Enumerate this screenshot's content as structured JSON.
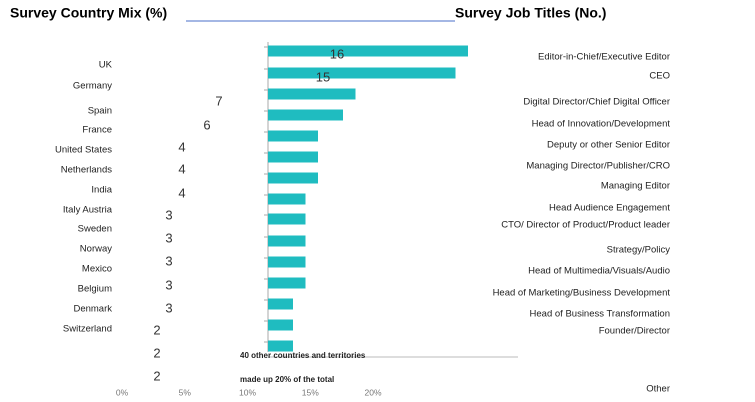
{
  "chart_data": [
    {
      "type": "bar",
      "title": "Survey Country Mix (%)",
      "categories": [
        "UK",
        "Germany",
        "Spain",
        "France",
        "United States",
        "Netherlands",
        "India",
        "Italy Austria",
        "Sweden",
        "Norway",
        "Mexico",
        "Belgium",
        "Denmark",
        "Switzerland"
      ],
      "xlim": [
        0,
        20
      ],
      "xticks": [
        {
          "value": 0,
          "label": "0%"
        },
        {
          "value": 5,
          "label": "5%"
        },
        {
          "value": 10,
          "label": "10%"
        },
        {
          "value": 15,
          "label": "15%"
        },
        {
          "value": 20,
          "label": "20%"
        }
      ],
      "annotations": [
        "40 other countries and territories",
        "made up 20% of the total"
      ]
    },
    {
      "type": "bar",
      "title": "Survey Job Titles (No.)",
      "color": "#1fbcc0",
      "categories": [
        "Editor-in-Chief/Executive Editor",
        "CEO",
        "Digital Director/Chief Digital Officer",
        "Head of Innovation/Development",
        "Deputy or other Senior Editor",
        "Managing Director/Publisher/CRO",
        "Managing Editor",
        "Head Audience Engagement",
        "CTO/ Director of Product/Product leader",
        "Strategy/Policy",
        "Head of Multimedia/Visuals/Audio",
        "Head of Marketing/Business Development",
        "Head of Business Transformation",
        "Founder/Director",
        "Other"
      ],
      "values": [
        16,
        15,
        7,
        6,
        4,
        4,
        4,
        3,
        3,
        3,
        3,
        3,
        2,
        2,
        2
      ],
      "xlim": [
        0,
        16
      ]
    }
  ]
}
